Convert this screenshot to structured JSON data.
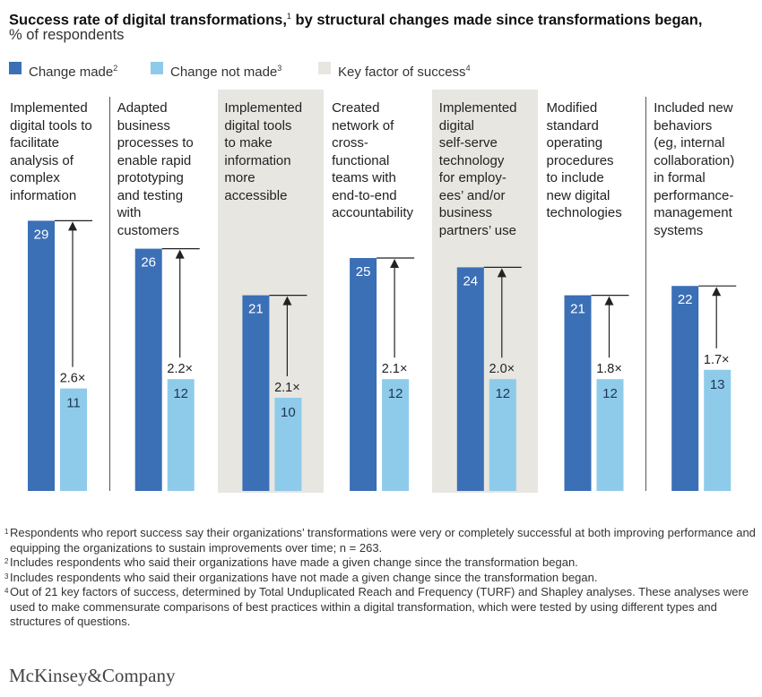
{
  "header": {
    "title": "Success rate of digital transformations,",
    "title_footnote": "1",
    "title_rest": " by structural changes made since transformations began,",
    "subtitle": "% of respondents"
  },
  "legend": [
    {
      "label": "Change made",
      "footnote": "2",
      "color": "#3b6fb6"
    },
    {
      "label": "Change not made",
      "footnote": "3",
      "color": "#8ecbeb"
    },
    {
      "label": "Key factor of success",
      "footnote": "4",
      "color": "#e7e6e1"
    }
  ],
  "chart_data": {
    "type": "bar",
    "title": "Success rate of digital transformations, by structural changes made since transformations began",
    "ylabel": "% of respondents",
    "ylim": [
      0,
      30
    ],
    "series": [
      {
        "name": "Change made",
        "values": [
          29,
          26,
          21,
          25,
          24,
          21,
          22
        ]
      },
      {
        "name": "Change not made",
        "values": [
          11,
          12,
          10,
          12,
          12,
          12,
          13
        ]
      }
    ],
    "multipliers": [
      "2.6×",
      "2.2×",
      "2.1×",
      "2.1×",
      "2.0×",
      "1.8×",
      "1.7×"
    ],
    "key_factor": [
      false,
      false,
      true,
      false,
      true,
      false,
      false
    ],
    "categories": [
      [
        "Implemented",
        "digital tools to",
        "facilitate",
        "analysis of",
        "complex",
        "information"
      ],
      [
        "Adapted",
        "business",
        "processes to",
        "enable rapid",
        "prototyping",
        "and testing",
        "with",
        "customers"
      ],
      [
        "Implemented",
        "digital tools",
        "to make",
        "information",
        "more",
        "accessible"
      ],
      [
        "Created",
        "network of",
        "cross-",
        "functional",
        "teams with",
        "end-to-end",
        "accountability"
      ],
      [
        "Implemented",
        "digital",
        "self-serve",
        "technology",
        "for employ-",
        "ees’ and/or",
        "business",
        "partners’ use"
      ],
      [
        "Modified",
        "standard",
        "operating",
        "procedures",
        "to include",
        "new digital",
        "technologies"
      ],
      [
        "Included new",
        "behaviors",
        "(eg, internal",
        "collaboration)",
        "in formal",
        "performance-",
        "management",
        "systems"
      ]
    ]
  },
  "footnotes": [
    {
      "mark": "1",
      "text": "Respondents who report success say their organizations’ transformations were very or completely successful at both improving performance and equipping the organizations to sustain improvements over time; n = 263."
    },
    {
      "mark": "2",
      "text": "Includes respondents who said their organizations have made a given change since the transformation began."
    },
    {
      "mark": "3",
      "text": "Includes respondents who said their organizations have not made a given change since the transformation began."
    },
    {
      "mark": "4",
      "text": "Out of 21 key factors of success, determined by Total Unduplicated Reach and Frequency (TURF) and Shapley analyses. These analyses were used to make commensurate comparisons of best practices within a digital transformation, which were tested by using different types and structures of questions."
    }
  ],
  "brand": {
    "name": "McKinsey&Company"
  },
  "colors": {
    "change_made": "#3b6fb6",
    "change_not_made": "#8ecbeb",
    "key_factor_bg": "#e7e6e1",
    "axis": "#222222"
  }
}
